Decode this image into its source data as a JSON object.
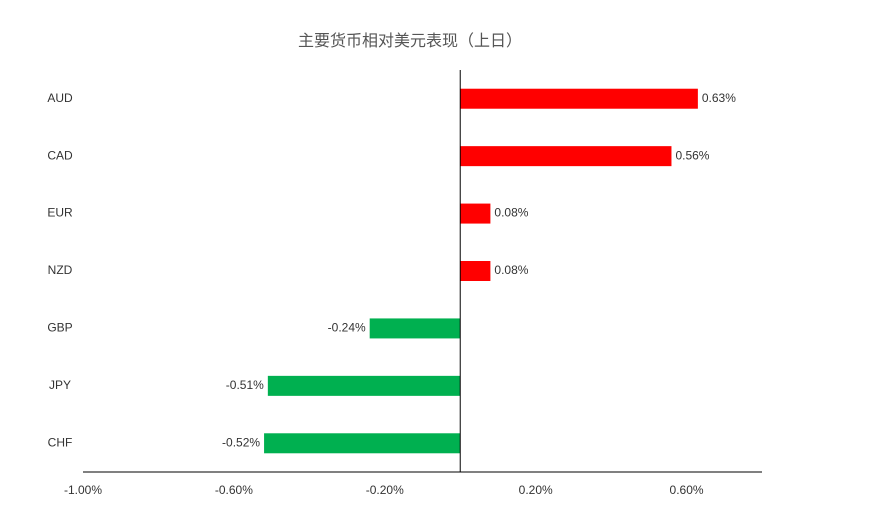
{
  "chart_data": {
    "type": "hbar",
    "title": "主要货币相对美元表现（上日）",
    "categories": [
      "AUD",
      "CAD",
      "EUR",
      "NZD",
      "GBP",
      "JPY",
      "CHF"
    ],
    "values": [
      0.63,
      0.56,
      0.08,
      0.08,
      -0.24,
      -0.51,
      -0.52
    ],
    "value_labels": [
      "0.63%",
      "0.56%",
      "0.08%",
      "0.08%",
      "-0.24%",
      "-0.51%",
      "-0.52%"
    ],
    "positive_color": "#ff0000",
    "negative_color": "#00b050",
    "xlim": [
      -1,
      0.8
    ],
    "xticks": [
      {
        "value": -1,
        "label": "-1.00%"
      },
      {
        "value": -0.6,
        "label": "-0.60%"
      },
      {
        "value": -0.2,
        "label": "-0.20%"
      },
      {
        "value": 0.2,
        "label": "0.20%"
      },
      {
        "value": 0.6,
        "label": "0.60%"
      }
    ]
  }
}
